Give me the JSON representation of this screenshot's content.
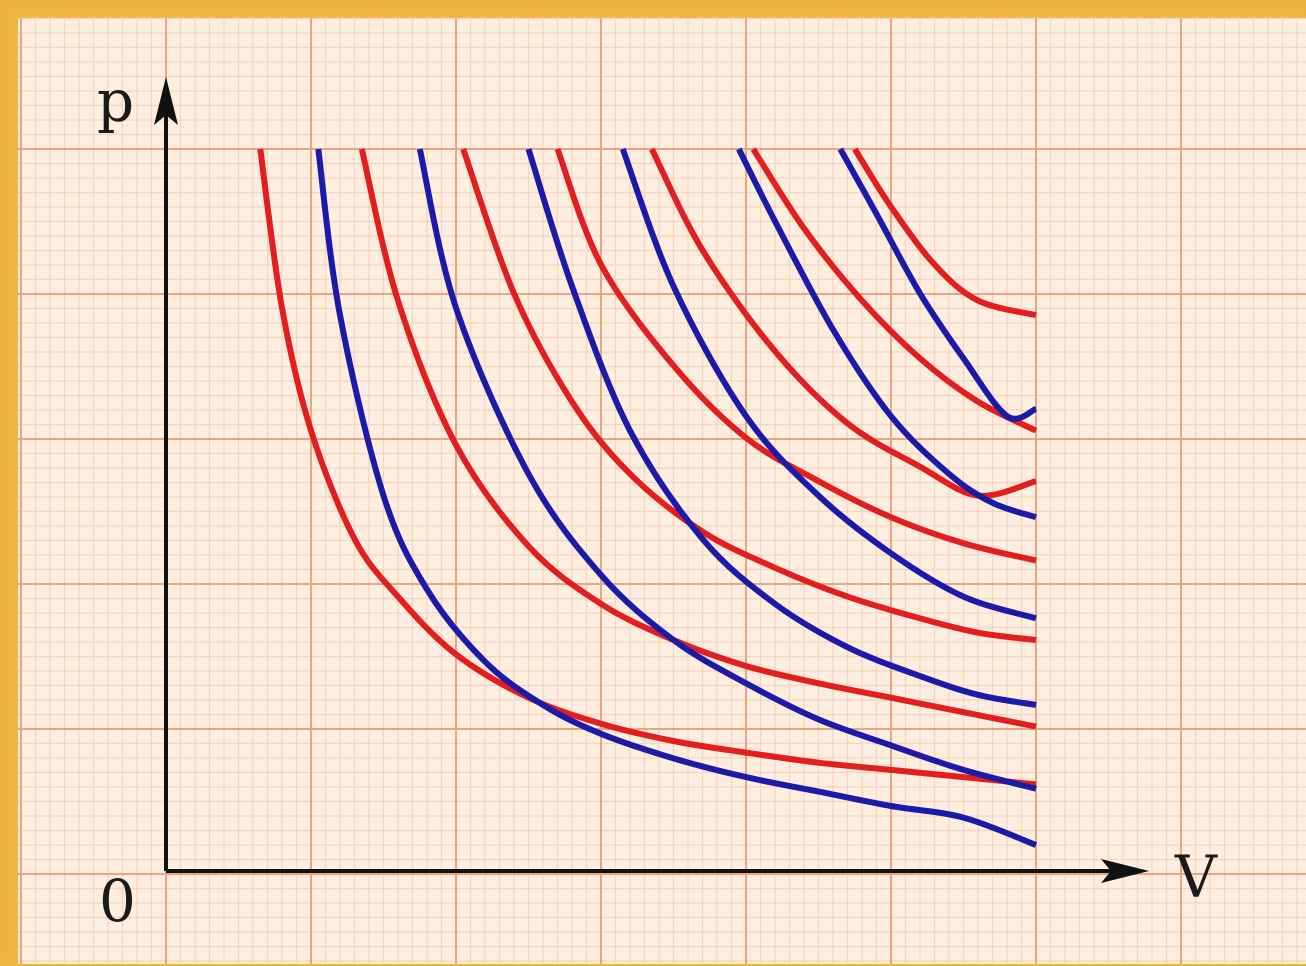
{
  "chart_data": {
    "type": "line",
    "title": "",
    "xlabel": "V",
    "ylabel": "p",
    "origin_label": "0",
    "xlim": [
      0,
      6
    ],
    "ylim": [
      0,
      5
    ],
    "grid": true,
    "legend": "none",
    "colors": {
      "paper": "#fdeee0",
      "grid_major": "#e8a682",
      "grid_minor": "#f7d4be",
      "red": "#e41e1e",
      "blue": "#1c1aa8",
      "axis": "#111111"
    },
    "series": [
      {
        "color": "#e41e1e",
        "x": [
          0.65,
          0.8,
          1.0,
          1.3,
          1.6,
          2.0,
          2.5,
          3.0,
          3.5,
          4.0,
          4.5,
          5.0,
          5.5,
          6.0
        ],
        "y": [
          5.0,
          3.9,
          3.05,
          2.3,
          1.9,
          1.5,
          1.2,
          1.02,
          0.9,
          0.82,
          0.75,
          0.7,
          0.65,
          0.6
        ]
      },
      {
        "color": "#1c1aa8",
        "x": [
          1.05,
          1.2,
          1.5,
          1.8,
          2.2,
          2.6,
          3.0,
          3.5,
          4.0,
          4.5,
          5.0,
          5.5,
          6.0
        ],
        "y": [
          5.0,
          3.85,
          2.6,
          1.95,
          1.45,
          1.15,
          0.95,
          0.78,
          0.65,
          0.55,
          0.45,
          0.37,
          0.18
        ]
      },
      {
        "color": "#e41e1e",
        "x": [
          1.35,
          1.6,
          2.0,
          2.5,
          3.0,
          3.5,
          4.0,
          4.5,
          5.0,
          5.5,
          6.0
        ],
        "y": [
          5.0,
          3.95,
          2.95,
          2.25,
          1.85,
          1.6,
          1.42,
          1.3,
          1.2,
          1.1,
          1.0
        ]
      },
      {
        "color": "#1c1aa8",
        "x": [
          1.75,
          2.0,
          2.5,
          3.0,
          3.5,
          4.0,
          4.5,
          5.0,
          5.5,
          6.0
        ],
        "y": [
          5.0,
          3.9,
          2.75,
          2.05,
          1.6,
          1.3,
          1.05,
          0.87,
          0.7,
          0.57
        ]
      },
      {
        "color": "#e41e1e",
        "x": [
          2.05,
          2.4,
          2.8,
          3.2,
          3.7,
          4.2,
          4.7,
          5.2,
          5.6,
          6.0
        ],
        "y": [
          5.0,
          4.0,
          3.25,
          2.75,
          2.35,
          2.1,
          1.9,
          1.75,
          1.65,
          1.6
        ]
      },
      {
        "color": "#1c1aa8",
        "x": [
          2.5,
          2.8,
          3.2,
          3.7,
          4.2,
          4.7,
          5.2,
          5.6,
          6.0
        ],
        "y": [
          5.0,
          4.05,
          3.05,
          2.3,
          1.85,
          1.55,
          1.35,
          1.22,
          1.15
        ]
      },
      {
        "color": "#e41e1e",
        "x": [
          2.7,
          3.0,
          3.5,
          4.0,
          4.5,
          5.0,
          5.5,
          6.0
        ],
        "y": [
          5.0,
          4.2,
          3.5,
          3.0,
          2.7,
          2.45,
          2.27,
          2.15
        ]
      },
      {
        "color": "#1c1aa8",
        "x": [
          3.15,
          3.5,
          4.0,
          4.5,
          5.0,
          5.5,
          6.0
        ],
        "y": [
          5.0,
          4.05,
          3.15,
          2.6,
          2.2,
          1.9,
          1.75
        ]
      },
      {
        "color": "#e41e1e",
        "x": [
          3.35,
          3.7,
          4.2,
          4.7,
          5.2,
          5.6,
          6.0
        ],
        "y": [
          5.0,
          4.3,
          3.6,
          3.1,
          2.8,
          2.6,
          2.7
        ]
      },
      {
        "color": "#1c1aa8",
        "x": [
          3.95,
          4.2,
          4.6,
          5.0,
          5.4,
          5.7,
          6.0
        ],
        "y": [
          5.0,
          4.5,
          3.75,
          3.15,
          2.75,
          2.55,
          2.45
        ]
      },
      {
        "color": "#e41e1e",
        "x": [
          4.05,
          4.4,
          4.8,
          5.2,
          5.6,
          6.0
        ],
        "y": [
          5.0,
          4.45,
          3.95,
          3.55,
          3.25,
          3.05
        ]
      },
      {
        "color": "#1c1aa8",
        "x": [
          4.65,
          4.9,
          5.2,
          5.5,
          5.8,
          6.0
        ],
        "y": [
          5.0,
          4.55,
          4.0,
          3.55,
          3.15,
          3.2
        ]
      },
      {
        "color": "#e41e1e",
        "x": [
          4.75,
          5.0,
          5.3,
          5.6,
          6.0
        ],
        "y": [
          5.0,
          4.6,
          4.2,
          3.95,
          3.85
        ]
      }
    ]
  }
}
